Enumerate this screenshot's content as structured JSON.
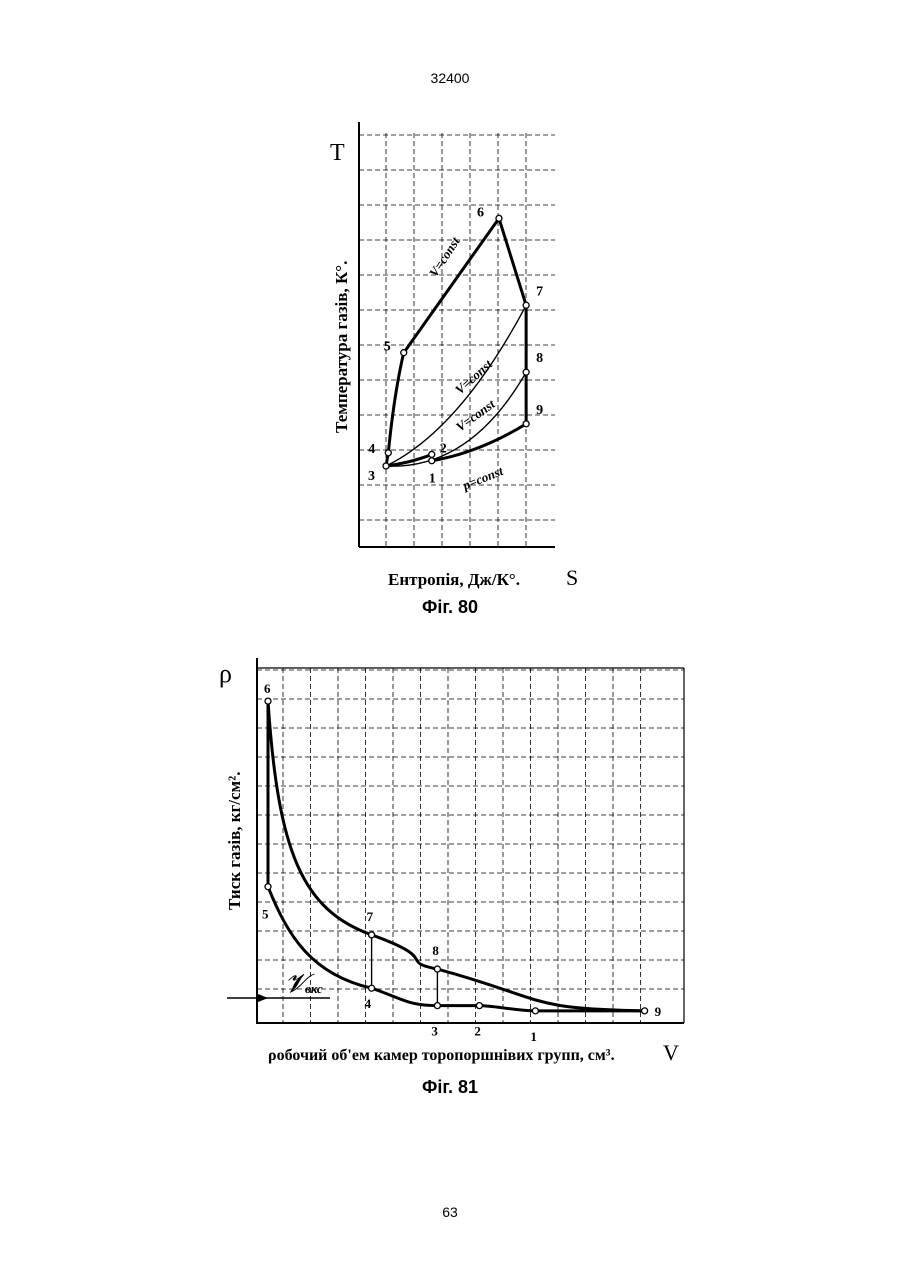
{
  "page": {
    "doc_number": "32400",
    "page_number": "63"
  },
  "chart_data": [
    {
      "type": "line",
      "caption": "Фіг. 80",
      "title": "",
      "axis_letter_x": "S",
      "axis_letter_y": "T",
      "xlabel": "Ентропія, Дж/К°.",
      "ylabel": "Температура газів, К°.",
      "point_labels": [
        "1",
        "2",
        "3",
        "4",
        "5",
        "6",
        "7",
        "8",
        "9"
      ],
      "curve_labels": {
        "c56": "V=const",
        "c37": "V=const",
        "c38": "V=const",
        "c19": "p=const"
      },
      "points": {
        "1": {
          "s": 1.6,
          "t": 0.65
        },
        "2": {
          "s": 1.6,
          "t": 0.77
        },
        "3": {
          "s": 0.0,
          "t": 0.55
        },
        "4": {
          "s": 0.08,
          "t": 0.8
        },
        "5": {
          "s": 0.62,
          "t": 2.7
        },
        "6": {
          "s": 3.95,
          "t": 5.25
        },
        "7": {
          "s": 4.9,
          "t": 3.6
        },
        "8": {
          "s": 4.9,
          "t": 2.33
        },
        "9": {
          "s": 4.9,
          "t": 1.35
        }
      },
      "series": [
        {
          "path": [
            "3",
            "4",
            "5",
            "6",
            "7",
            "8",
            "9",
            "1",
            "2",
            "3"
          ]
        },
        {
          "path": [
            "3",
            "7"
          ]
        },
        {
          "path": [
            "3",
            "8"
          ]
        },
        {
          "path": [
            "1",
            "9"
          ]
        }
      ],
      "grid": true
    },
    {
      "type": "line",
      "caption": "Фіг. 81",
      "title": "",
      "axis_letter_x": "V",
      "axis_letter_y": "ρ",
      "xlabel": "ρобочий об'ем камер торопоршнівих групп, см³.",
      "ylabel": "Тиск газів, кг/см².",
      "vks_label": "𝓥",
      "vks_subscript": "вкс",
      "point_labels": [
        "1",
        "2",
        "3",
        "4",
        "5",
        "6",
        "7",
        "8",
        "9"
      ],
      "points": {
        "1": {
          "v": 9.55,
          "p": 0.1
        },
        "2": {
          "v": 7.55,
          "p": 0.55
        },
        "3": {
          "v": 6.05,
          "p": 0.55
        },
        "4": {
          "v": 3.7,
          "p": 2.05
        },
        "5": {
          "v": 0.0,
          "p": 10.8
        },
        "6": {
          "v": 0.0,
          "p": 26.8
        },
        "7": {
          "v": 3.7,
          "p": 6.65
        },
        "8": {
          "v": 6.05,
          "p": 3.7
        },
        "9": {
          "v": 13.45,
          "p": 0.1
        }
      },
      "series": [
        {
          "path": [
            "6",
            "7",
            "8",
            "9"
          ]
        },
        {
          "path": [
            "5",
            "4",
            "3",
            "2",
            "1",
            "9"
          ]
        },
        {
          "path": [
            "6",
            "5"
          ]
        },
        {
          "path": [
            "4",
            "7"
          ]
        },
        {
          "path": [
            "3",
            "8"
          ]
        }
      ],
      "grid": true
    }
  ]
}
